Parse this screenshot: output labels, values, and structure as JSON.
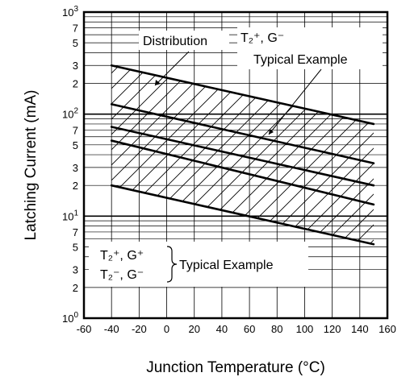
{
  "chart_data": {
    "type": "line",
    "xlabel": "Junction Temperature  (°C)",
    "ylabel": "Latching Current  (mA)",
    "xlim": [
      -60,
      160
    ],
    "ylim": [
      1,
      1000
    ],
    "y_scale": "log",
    "grid": true,
    "x_ticks": [
      "-60",
      "-40",
      "-20",
      "0",
      "20",
      "40",
      "60",
      "80",
      "100",
      "120",
      "140",
      "160"
    ],
    "y_ticks": [
      {
        "value": 1000,
        "base": "10",
        "exp": "3"
      },
      {
        "value": 700,
        "label": "7"
      },
      {
        "value": 500,
        "label": "5"
      },
      {
        "value": 300,
        "label": "3"
      },
      {
        "value": 200,
        "label": "2"
      },
      {
        "value": 100,
        "base": "10",
        "exp": "2"
      },
      {
        "value": 70,
        "label": "7"
      },
      {
        "value": 50,
        "label": "5"
      },
      {
        "value": 30,
        "label": "3"
      },
      {
        "value": 20,
        "label": "2"
      },
      {
        "value": 10,
        "base": "10",
        "exp": "1"
      },
      {
        "value": 7,
        "label": "7"
      },
      {
        "value": 5,
        "label": "5"
      },
      {
        "value": 3,
        "label": "3"
      },
      {
        "value": 2,
        "label": "2"
      },
      {
        "value": 1,
        "base": "10",
        "exp": "0"
      }
    ],
    "series": [
      {
        "x": [
          -40,
          150
        ],
        "values": [
          300,
          80
        ]
      },
      {
        "x": [
          -40,
          150
        ],
        "values": [
          125,
          33
        ]
      },
      {
        "x": [
          -40,
          150
        ],
        "values": [
          75,
          20
        ]
      },
      {
        "x": [
          -40,
          150
        ],
        "values": [
          55,
          13
        ]
      },
      {
        "x": [
          -40,
          150
        ],
        "values": [
          20,
          5.3
        ]
      }
    ],
    "annotations": {
      "distribution": "Distribution",
      "upper_label_lines": [
        "T₂⁺, G⁻",
        "Typical Example"
      ],
      "lower_label_lines": [
        "T₂⁺, G⁺",
        "T₂⁻, G⁻"
      ],
      "lower_typical": "Typical Example"
    }
  }
}
